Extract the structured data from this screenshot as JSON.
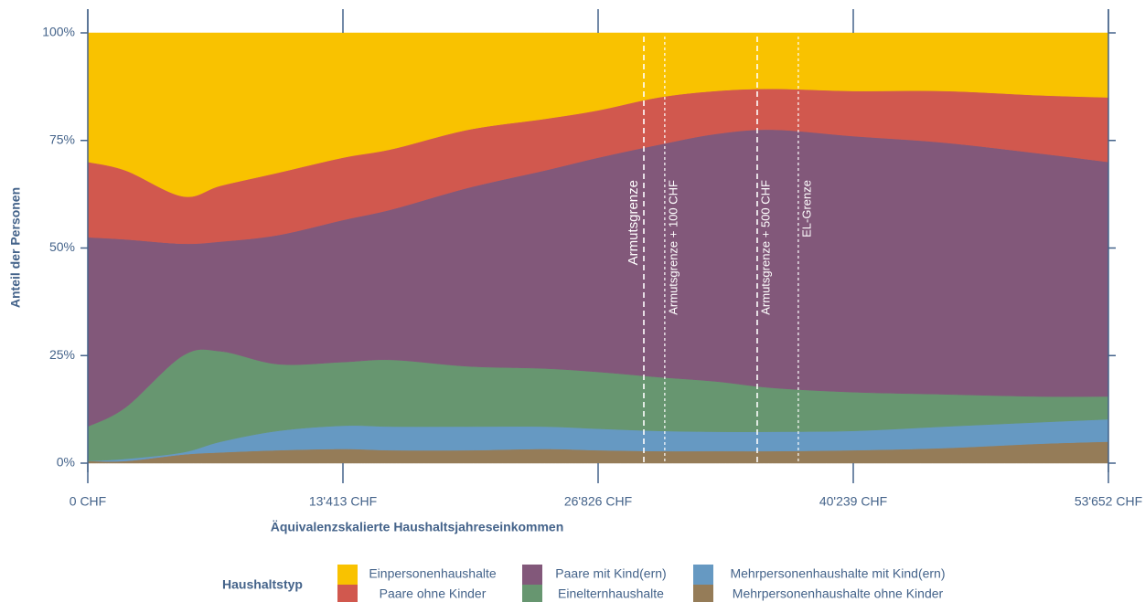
{
  "chart_data": {
    "type": "stacked_area",
    "x_label": "Äquivalenzskalierte Haushaltsjahreseinkommen",
    "y_label": "Anteil der Personen",
    "legend_title": "Haushaltstyp",
    "x": [
      0,
      2000,
      5000,
      7000,
      10000,
      13413,
      16000,
      20000,
      24000,
      26826,
      30000,
      33000,
      36000,
      40239,
      45000,
      50000,
      53652
    ],
    "series": [
      {
        "name": "Einpersonenhaushalte",
        "color": "#F9C200",
        "values": [
          30,
          32,
          38,
          35.5,
          32.5,
          29,
          27,
          22.5,
          20,
          18,
          15,
          13.5,
          13,
          13.5,
          13.5,
          14.5,
          15
        ]
      },
      {
        "name": "Paare ohne Kinder",
        "color": "#D1584E",
        "values": [
          17.5,
          16,
          11,
          13,
          14.5,
          14.5,
          14,
          13.5,
          12,
          11,
          11,
          10,
          9.5,
          10.5,
          12,
          13.5,
          15
        ]
      },
      {
        "name": "Paare mit Kind(ern)",
        "color": "#82587A",
        "values": [
          44,
          39,
          26,
          25.5,
          30,
          33,
          35,
          41.5,
          46,
          49.8,
          54,
          57.5,
          60,
          59.5,
          58.5,
          56.5,
          54.5
        ]
      },
      {
        "name": "Einelternhaushalte",
        "color": "#679670",
        "values": [
          8,
          12,
          22.5,
          21,
          15.5,
          14.8,
          15.5,
          14,
          13.5,
          13.2,
          12.5,
          11.7,
          10.2,
          9,
          7.5,
          6,
          5.3
        ]
      },
      {
        "name": "Mehrpersonenhaushalte mit Kind(ern)",
        "color": "#6699C2",
        "values": [
          0,
          0.5,
          0.5,
          2.5,
          4.5,
          5.4,
          5.5,
          5.5,
          5.2,
          5,
          4.7,
          4.5,
          4.5,
          4.5,
          5,
          5,
          5.2
        ]
      },
      {
        "name": "Mehrpersonenhaushalte ohne Kinder",
        "color": "#957C58",
        "values": [
          0.5,
          0.5,
          2,
          2.5,
          3,
          3.3,
          3,
          3,
          3.3,
          3,
          2.8,
          2.8,
          2.8,
          3,
          3.5,
          4.5,
          5
        ]
      }
    ],
    "stacking": "last_series_at_bottom",
    "xlim": [
      0,
      53652
    ],
    "xticks": [
      {
        "value": 0,
        "label": "0 CHF"
      },
      {
        "value": 13413,
        "label": "13'413 CHF"
      },
      {
        "value": 26826,
        "label": "26'826 CHF"
      },
      {
        "value": 40239,
        "label": "40'239 CHF"
      },
      {
        "value": 53652,
        "label": "53'652 CHF"
      }
    ],
    "ylim": [
      0,
      100
    ],
    "yticks": [
      {
        "value": 0,
        "label": "0%"
      },
      {
        "value": 25,
        "label": "25%"
      },
      {
        "value": 50,
        "label": "50%"
      },
      {
        "value": 75,
        "label": "75%"
      },
      {
        "value": 100,
        "label": "100%"
      }
    ],
    "grid": false,
    "legend_position": "bottom",
    "annotations": [
      {
        "x": 29230,
        "text": "Armutsgrenze",
        "side": "left"
      },
      {
        "x": 30330,
        "text": "Armutsgrenze + 100 CHF",
        "side": "right"
      },
      {
        "x": 35190,
        "text": "Armutsgrenze + 500 CHF",
        "side": "right"
      },
      {
        "x": 37350,
        "text": "EL-Grenze",
        "side": "right"
      }
    ]
  }
}
